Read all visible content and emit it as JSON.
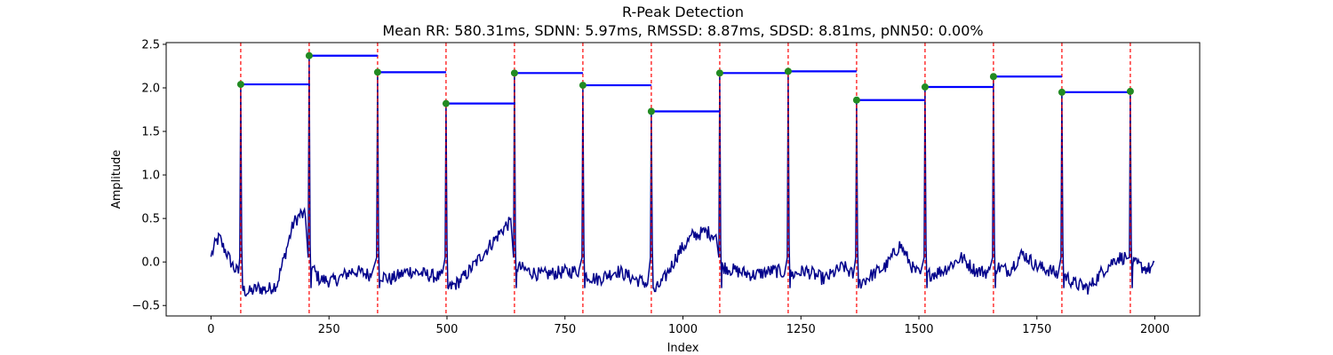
{
  "chart_data": {
    "type": "line",
    "title": "R-Peak Detection",
    "subtitle": "Mean RR: 580.31ms, SDNN: 5.97ms, RMSSD: 8.87ms, SDSD: 8.81ms, pNN50: 0.00%",
    "xlabel": "Index",
    "ylabel": "Amplitude",
    "xlim": [
      -95,
      2095
    ],
    "ylim": [
      -0.62,
      2.52
    ],
    "xticks": [
      0,
      250,
      500,
      750,
      1000,
      1250,
      1500,
      1750,
      2000
    ],
    "xtick_labels": [
      "0",
      "250",
      "500",
      "750",
      "1000",
      "1250",
      "1500",
      "1750",
      "2000"
    ],
    "yticks": [
      -0.5,
      0.0,
      0.5,
      1.0,
      1.5,
      2.0,
      2.5
    ],
    "ytick_labels": [
      "−0.5",
      "0.0",
      "0.5",
      "1.0",
      "1.5",
      "2.0",
      "2.5"
    ],
    "grid": false,
    "colors": {
      "signal": "#00008b",
      "peak_line": "#ff0000",
      "rr_segment": "#0000ff",
      "peak_marker": "#228b22"
    },
    "peaks": {
      "x": [
        63,
        208,
        353,
        498,
        643,
        788,
        933,
        1078,
        1223,
        1368,
        1513,
        1658,
        1803,
        1948
      ],
      "y": [
        2.04,
        2.37,
        2.18,
        1.82,
        2.17,
        2.03,
        1.73,
        2.17,
        2.19,
        1.86,
        2.01,
        2.13,
        1.95,
        1.96
      ]
    },
    "signal_length": 2000,
    "baseline_segments": [
      {
        "x": [
          0,
          10,
          18,
          25,
          32,
          40,
          50,
          58
        ],
        "y": [
          0.06,
          0.22,
          0.28,
          0.18,
          0.12,
          0.02,
          -0.08,
          -0.12
        ]
      },
      {
        "x": [
          68,
          80,
          100,
          120,
          140,
          160,
          175,
          190,
          200
        ],
        "y": [
          -0.32,
          -0.35,
          -0.3,
          -0.32,
          -0.25,
          0.15,
          0.45,
          0.55,
          0.52
        ]
      },
      {
        "x": [
          213,
          230,
          260,
          300,
          340
        ],
        "y": [
          -0.05,
          -0.2,
          -0.22,
          -0.1,
          -0.15
        ]
      },
      {
        "x": [
          358,
          380,
          420,
          460,
          490
        ],
        "y": [
          -0.15,
          -0.2,
          -0.1,
          -0.15,
          -0.18
        ]
      },
      {
        "x": [
          503,
          520,
          540,
          570,
          600,
          625,
          635
        ],
        "y": [
          -0.3,
          -0.25,
          -0.15,
          0.05,
          0.25,
          0.42,
          0.45
        ]
      },
      {
        "x": [
          648,
          670,
          700,
          740,
          780
        ],
        "y": [
          -0.05,
          -0.1,
          -0.15,
          -0.12,
          -0.1
        ]
      },
      {
        "x": [
          793,
          820,
          860,
          900,
          925
        ],
        "y": [
          -0.15,
          -0.2,
          -0.1,
          -0.2,
          -0.25
        ]
      },
      {
        "x": [
          938,
          960,
          990,
          1020,
          1050,
          1070
        ],
        "y": [
          -0.35,
          -0.2,
          0.1,
          0.3,
          0.35,
          0.3
        ]
      },
      {
        "x": [
          1083,
          1110,
          1150,
          1190,
          1215
        ],
        "y": [
          -0.05,
          -0.1,
          -0.15,
          -0.1,
          -0.12
        ]
      },
      {
        "x": [
          1228,
          1260,
          1300,
          1340,
          1360
        ],
        "y": [
          -0.15,
          -0.1,
          -0.2,
          -0.05,
          -0.15
        ]
      },
      {
        "x": [
          1373,
          1400,
          1430,
          1460,
          1490,
          1505
        ],
        "y": [
          -0.25,
          -0.15,
          -0.05,
          0.2,
          -0.1,
          -0.15
        ]
      },
      {
        "x": [
          1518,
          1550,
          1590,
          1620,
          1650
        ],
        "y": [
          -0.15,
          -0.1,
          0.05,
          -0.1,
          -0.12
        ]
      },
      {
        "x": [
          1663,
          1690,
          1720,
          1750,
          1780,
          1795
        ],
        "y": [
          -0.05,
          -0.1,
          0.1,
          -0.05,
          -0.1,
          -0.15
        ]
      },
      {
        "x": [
          1808,
          1830,
          1860,
          1890,
          1920,
          1940
        ],
        "y": [
          -0.15,
          -0.25,
          -0.3,
          -0.1,
          0.05,
          0.05
        ]
      },
      {
        "x": [
          1953,
          1970,
          1985,
          2000
        ],
        "y": [
          -0.02,
          -0.05,
          -0.08,
          -0.06
        ]
      }
    ]
  }
}
